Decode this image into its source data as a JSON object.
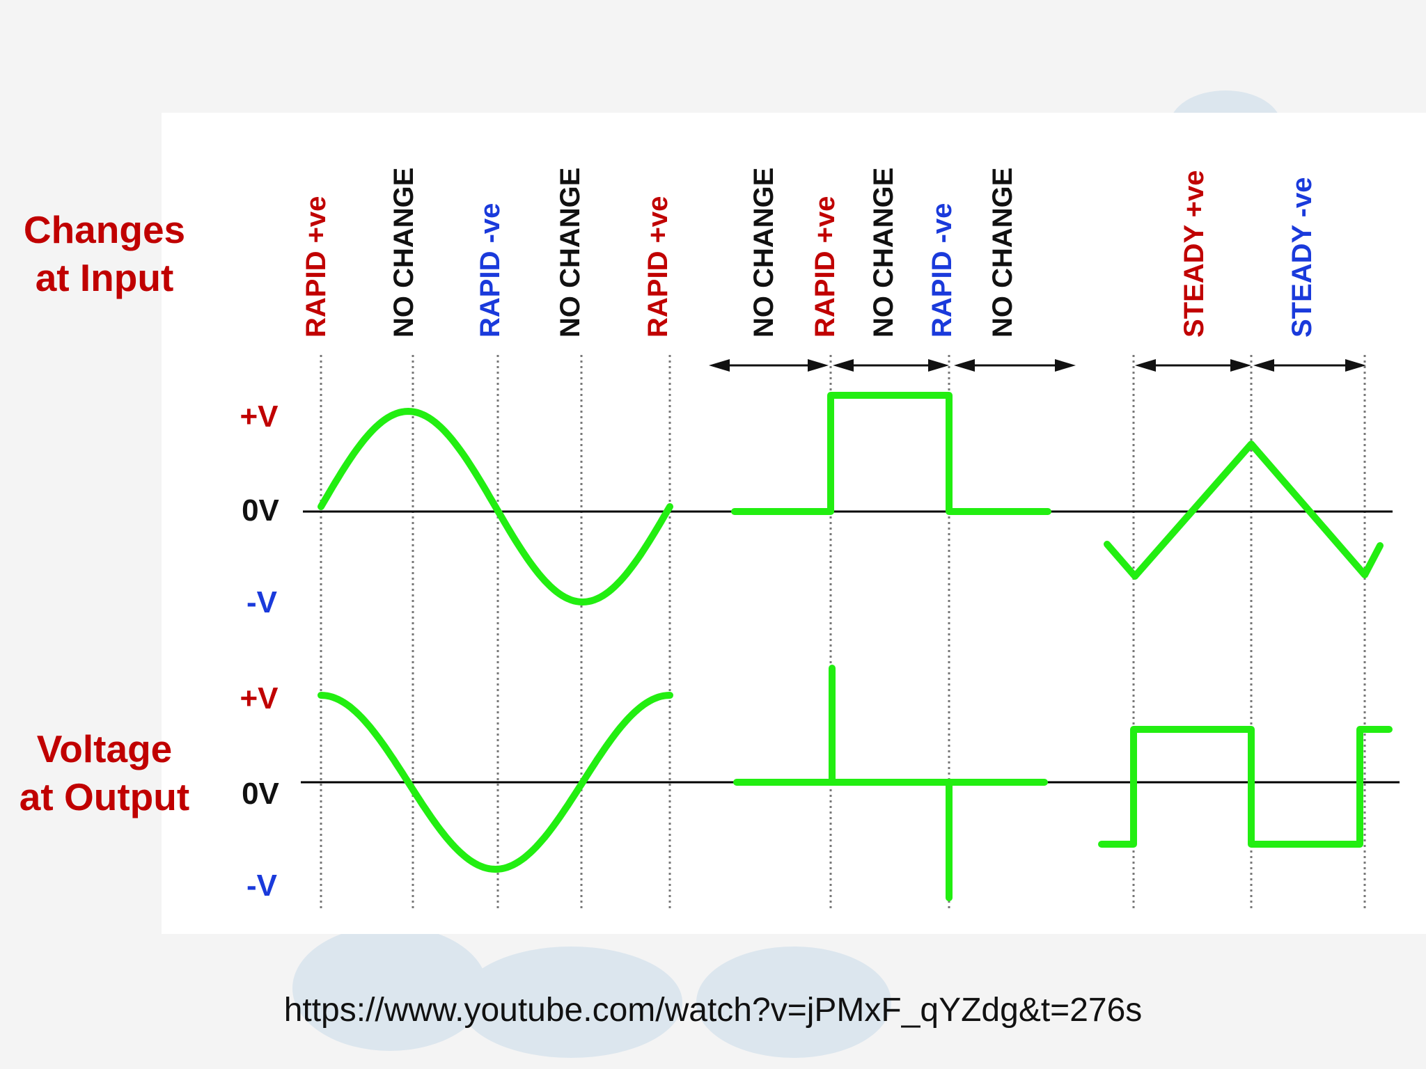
{
  "row_labels": {
    "input_line1": "Changes",
    "input_line2": "at Input",
    "output_line1": "Voltage",
    "output_line2": "at Output"
  },
  "level_labels": {
    "plus": "+V",
    "zero": "0V",
    "minus": "-V"
  },
  "column_labels": [
    {
      "text": "RAPID +ve",
      "kind": "pos"
    },
    {
      "text": "NO CHANGE",
      "kind": "none"
    },
    {
      "text": "RAPID -ve",
      "kind": "neg"
    },
    {
      "text": "NO CHANGE",
      "kind": "none"
    },
    {
      "text": "RAPID +ve",
      "kind": "pos"
    },
    {
      "text": "NO CHANGE",
      "kind": "none"
    },
    {
      "text": "RAPID +ve",
      "kind": "pos"
    },
    {
      "text": "NO CHANGE",
      "kind": "none"
    },
    {
      "text": "RAPID -ve",
      "kind": "neg"
    },
    {
      "text": "NO CHANGE",
      "kind": "none"
    },
    {
      "text": "STEADY +ve",
      "kind": "pos"
    },
    {
      "text": "STEADY -ve",
      "kind": "neg"
    }
  ],
  "colors": {
    "positive": "#c00000",
    "negative": "#1a3adb",
    "neutral": "#111111",
    "trace": "#22ee11",
    "axis": "#000000"
  },
  "source_url": "https://www.youtube.com/watch?v=jPMxF_qYZdg&t=276s"
}
